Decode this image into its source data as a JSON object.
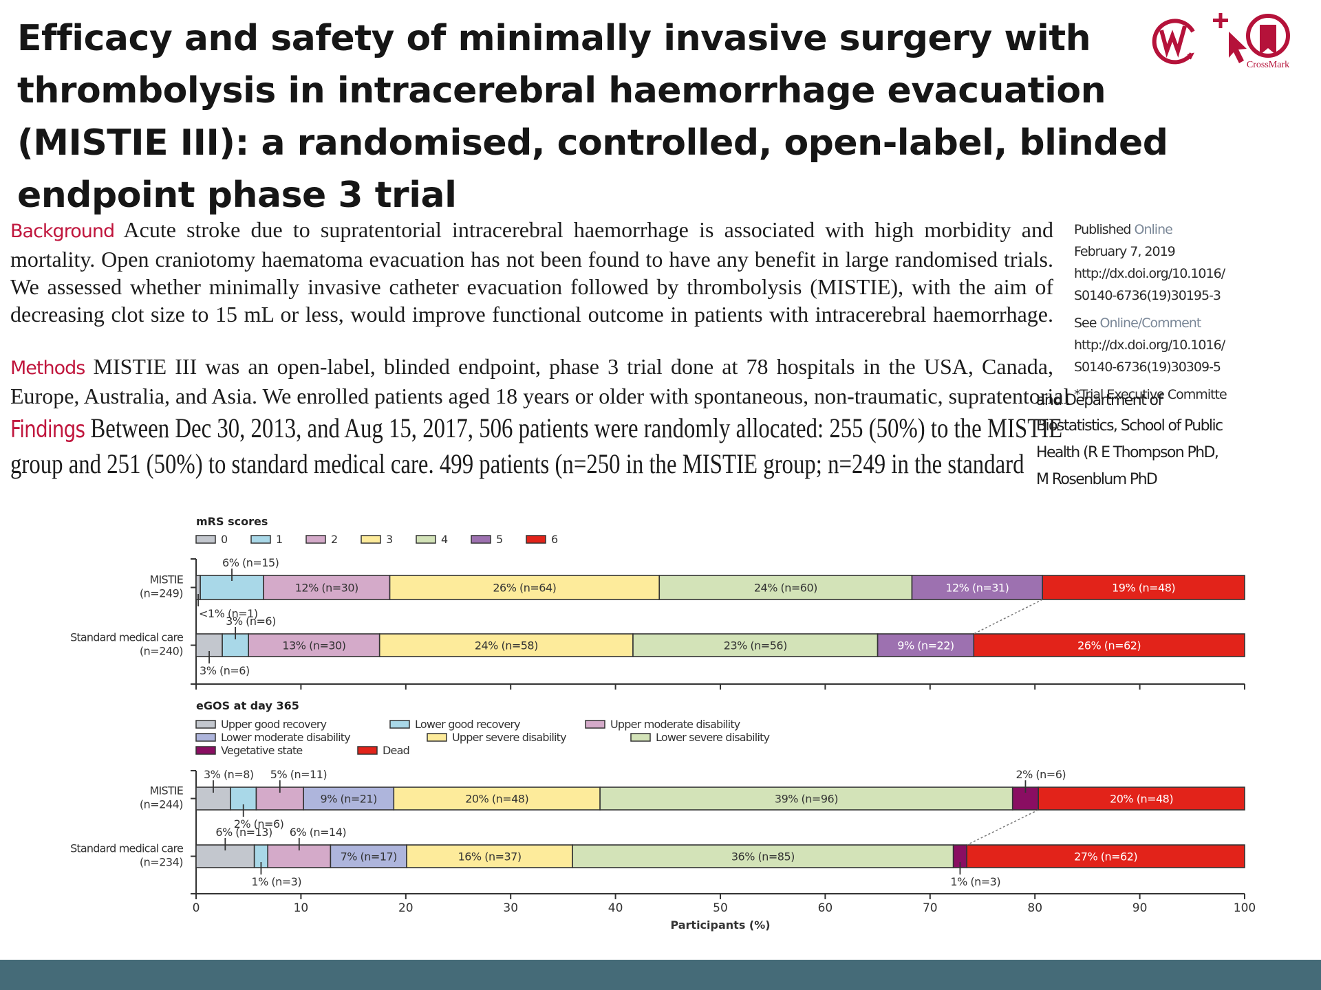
{
  "title_lines": [
    "Efficacy and safety of minimally invasive surgery with",
    "thrombolysis in intracerebral haemorrhage evacuation",
    "(MISTIE III): a randomised, controlled, open-label, blinded",
    "endpoint phase 3 trial"
  ],
  "icons": {
    "left": "wiley-w-icon",
    "middle": "cursor-plus-icon",
    "right": "crossmark-icon",
    "crossmark_label": "CrossMark",
    "color": "#b5123a"
  },
  "abstract": {
    "background": {
      "heading": "Background",
      "lines": [
        "Acute stroke due to supratentorial intracerebral haemorrhage is associated with high morbidity and",
        "mortality. Open craniotomy haematoma evacuation has not been found to have any benefit in large randomised trials.",
        "We assessed whether minimally invasive catheter evacuation followed by thrombolysis (MISTIE), with the aim of",
        "decreasing clot size to 15 mL or less, would improve functional outcome in patients with intracerebral haemorrhage."
      ]
    },
    "methods": {
      "heading": "Methods",
      "lines": [
        "MISTIE III was an open-label, blinded endpoint, phase 3 trial done at 78 hospitals in the USA, Canada,",
        "Europe, Australia, and Asia. We enrolled patients aged 18 years or older with spontaneous, non-traumatic, supratentorial"
      ]
    },
    "findings": {
      "heading": "Findings",
      "lines": [
        "Between Dec 30, 2013, and Aug 15, 2017, 506 patients were randomly allocated: 255 (50%) to the MISTIE",
        "group and 251 (50%) to standard medical care. 499 patients (n=250 in the MISTIE group; n=249 in the standard"
      ]
    },
    "heading_color": "#c0163d"
  },
  "sidebar": {
    "published_label": "Published",
    "online_label": "Online",
    "date": "February 7, 2019",
    "doi1_a": "http://dx.doi.org/10.1016/",
    "doi1_b": "S0140-6736(19)30195-3",
    "see_label": "See",
    "comment_label": "Online/Comment",
    "doi2_a": "http://dx.doi.org/10.1016/",
    "doi2_b": "S0140-6736(19)30309-5",
    "committee": "*Trial Executive Committe",
    "affil_cut": "and Department of",
    "affil_lines": [
      "Biostatistics, School of Public",
      "Health (R E Thompson PhD,",
      "M Rosenblum PhD"
    ]
  },
  "chart_data": [
    {
      "type": "bar",
      "orientation": "horizontal-stacked",
      "title": "mRS scores",
      "legend": [
        "0",
        "1",
        "2",
        "3",
        "4",
        "5",
        "6"
      ],
      "colors": [
        "#c3c7ce",
        "#a9d8e8",
        "#d4aac9",
        "#fdeb9b",
        "#d3e3b8",
        "#9d71b0",
        "#e2231a"
      ],
      "xlim": [
        0,
        100
      ],
      "rows": [
        {
          "label": "MISTIE",
          "n_label": "(n=249)",
          "counts": [
            1,
            15,
            30,
            64,
            60,
            31,
            48
          ],
          "labels": [
            "<1% (n=1)",
            "6% (n=15)",
            "12% (n=30)",
            "26% (n=64)",
            "24% (n=60)",
            "12% (n=31)",
            "19% (n=48)"
          ],
          "label_pos": [
            "below",
            "above",
            "inside",
            "inside",
            "inside",
            "inside",
            "inside"
          ]
        },
        {
          "label": "Standard medical care",
          "n_label": "(n=240)",
          "counts": [
            6,
            6,
            30,
            58,
            56,
            22,
            62
          ],
          "labels": [
            "3% (n=6)",
            "3% (n=6)",
            "13% (n=30)",
            "24% (n=58)",
            "23% (n=56)",
            "9% (n=22)",
            "26% (n=62)"
          ],
          "label_pos": [
            "below",
            "above",
            "inside",
            "inside",
            "inside",
            "inside",
            "inside"
          ]
        }
      ],
      "tick_labels_shown": false
    },
    {
      "type": "bar",
      "orientation": "horizontal-stacked",
      "title": "eGOS at day 365",
      "legend": [
        "Upper good recovery",
        "Lower good recovery",
        "Upper moderate disability",
        "Lower moderate disability",
        "Upper severe disability",
        "Lower severe disability",
        "Vegetative state",
        "Dead"
      ],
      "colors": [
        "#c3c7ce",
        "#a9d8e8",
        "#d4aac9",
        "#aeb5dc",
        "#fdeb9b",
        "#d3e3b8",
        "#8a0e62",
        "#e2231a"
      ],
      "xlim": [
        0,
        100
      ],
      "xticks": [
        "0",
        "10",
        "20",
        "30",
        "40",
        "50",
        "60",
        "70",
        "80",
        "90",
        "100"
      ],
      "xlabel": "Participants (%)",
      "rows": [
        {
          "label": "MISTIE",
          "n_label": "(n=244)",
          "counts": [
            8,
            6,
            11,
            21,
            48,
            96,
            6,
            48
          ],
          "labels": [
            "3% (n=8)",
            "2% (n=6)",
            "5% (n=11)",
            "9% (n=21)",
            "20% (n=48)",
            "39% (n=96)",
            "2% (n=6)",
            "20% (n=48)"
          ],
          "label_pos": [
            "above",
            "below",
            "above",
            "inside",
            "inside",
            "inside",
            "above",
            "inside"
          ]
        },
        {
          "label": "Standard medical care",
          "n_label": "(n=234)",
          "counts": [
            13,
            3,
            14,
            17,
            37,
            85,
            3,
            62
          ],
          "labels": [
            "6% (n=13)",
            "1% (n=3)",
            "6% (n=14)",
            "7% (n=17)",
            "16% (n=37)",
            "36% (n=85)",
            "1% (n=3)",
            "27% (n=62)"
          ],
          "label_pos": [
            "above",
            "below",
            "above",
            "inside",
            "inside",
            "inside",
            "below",
            "inside"
          ]
        }
      ],
      "tick_labels_shown": true
    }
  ],
  "footer_color": "#456b78"
}
